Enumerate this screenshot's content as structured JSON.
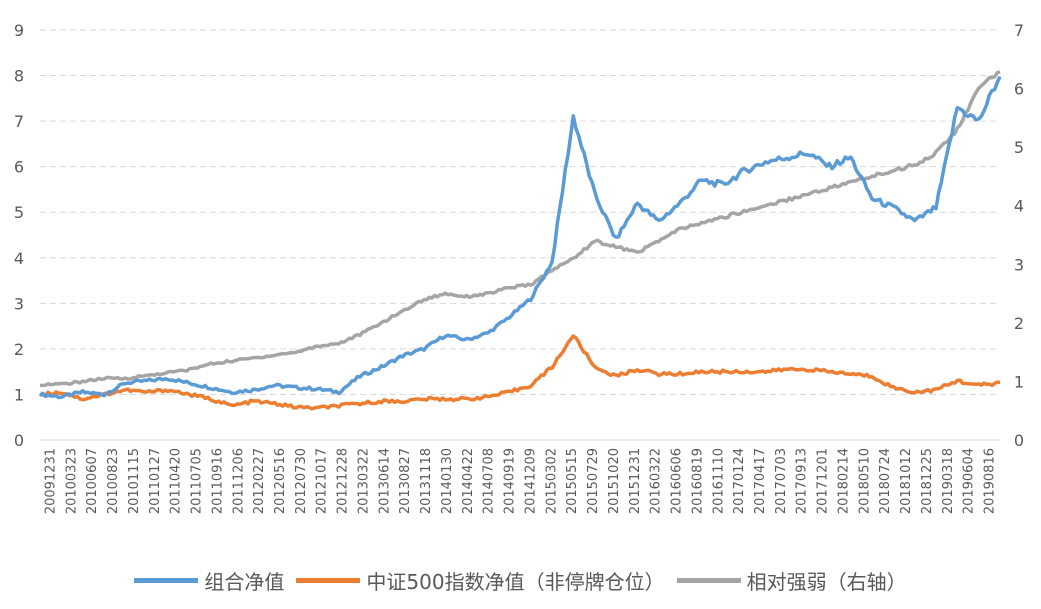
{
  "chart_data": {
    "type": "line",
    "title": "",
    "xlabel": "",
    "ylabel": "",
    "ylim": [
      0,
      9
    ],
    "y2lim": [
      0,
      7
    ],
    "yticks": [
      "0",
      "1",
      "2",
      "3",
      "4",
      "5",
      "6",
      "7",
      "8",
      "9"
    ],
    "y2ticks": [
      "0",
      "1",
      "2",
      "3",
      "4",
      "5",
      "6",
      "7"
    ],
    "grid": true,
    "legend_position": "bottom",
    "x_tick_labels": [
      "20091231",
      "20100323",
      "20100607",
      "20100823",
      "20101115",
      "20110127",
      "20110420",
      "20110705",
      "20110916",
      "20111206",
      "20120227",
      "20120516",
      "20120730",
      "20121017",
      "20121228",
      "20130322",
      "20130614",
      "20130827",
      "20131118",
      "20140130",
      "20140422",
      "20140708",
      "20140919",
      "20141209",
      "20150302",
      "20150515",
      "20150729",
      "20151020",
      "20151231",
      "20160322",
      "20160606",
      "20160819",
      "20161110",
      "20170124",
      "20170417",
      "20170703",
      "20170913",
      "20171201",
      "20180214",
      "20180510",
      "20180724",
      "20181012",
      "20181225",
      "20190318",
      "20190604",
      "20190816"
    ],
    "series": [
      {
        "name": "组合净值",
        "axis": "left",
        "color": "#5B9BD5",
        "values": [
          1.0,
          0.95,
          1.05,
          1.0,
          1.25,
          1.3,
          1.35,
          1.25,
          1.15,
          1.05,
          1.1,
          1.2,
          1.15,
          1.12,
          1.05,
          1.4,
          1.6,
          1.85,
          2.0,
          2.3,
          2.2,
          2.35,
          2.7,
          3.1,
          3.9,
          7.1,
          5.4,
          4.4,
          5.2,
          4.8,
          5.2,
          5.7,
          5.6,
          5.9,
          6.1,
          6.2,
          6.3,
          6.0,
          6.2,
          5.3,
          5.1,
          4.8,
          5.1,
          7.3,
          7.0,
          8.0
        ]
      },
      {
        "name": "中证500指数净值（非停牌仓位）",
        "axis": "left",
        "color": "#ED7D31",
        "values": [
          1.0,
          1.05,
          0.9,
          1.0,
          1.1,
          1.05,
          1.1,
          1.0,
          0.9,
          0.75,
          0.85,
          0.8,
          0.72,
          0.7,
          0.75,
          0.8,
          0.85,
          0.85,
          0.9,
          0.9,
          0.9,
          0.95,
          1.05,
          1.2,
          1.6,
          2.3,
          1.6,
          1.4,
          1.55,
          1.45,
          1.45,
          1.5,
          1.5,
          1.5,
          1.5,
          1.55,
          1.55,
          1.5,
          1.45,
          1.4,
          1.15,
          1.05,
          1.1,
          1.3,
          1.2,
          1.25
        ]
      },
      {
        "name": "相对强弱（右轴）",
        "axis": "right",
        "color": "#A5A5A5",
        "values": [
          0.95,
          0.95,
          1.0,
          1.05,
          1.05,
          1.1,
          1.15,
          1.2,
          1.3,
          1.35,
          1.4,
          1.45,
          1.5,
          1.6,
          1.65,
          1.8,
          2.0,
          2.2,
          2.4,
          2.5,
          2.45,
          2.5,
          2.6,
          2.65,
          2.9,
          3.1,
          3.4,
          3.3,
          3.2,
          3.4,
          3.6,
          3.7,
          3.8,
          3.9,
          4.0,
          4.1,
          4.2,
          4.3,
          4.4,
          4.5,
          4.6,
          4.7,
          4.9,
          5.3,
          6.0,
          6.3
        ]
      }
    ]
  }
}
